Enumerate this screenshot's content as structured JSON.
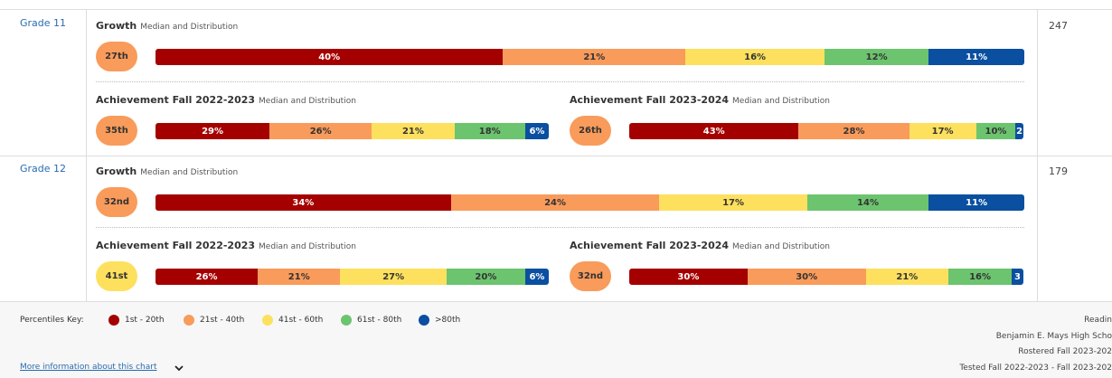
{
  "colors": [
    "#a50000",
    "#f99b5b",
    "#fde05e",
    "#6cc46e",
    "#0a4fa0"
  ],
  "rows": [
    {
      "label": "Grade 11",
      "count": "247",
      "growth": {
        "title": "Growth",
        "subtitle": "Median and Distribution",
        "median": "27th",
        "median_color": "#f99b5b",
        "values": [
          40,
          21,
          16,
          12,
          11
        ],
        "value_labels": [
          "40%",
          "21%",
          "16%",
          "12%",
          "11%"
        ]
      },
      "achievements": [
        {
          "title": "Achievement Fall 2022-2023",
          "subtitle": "Median and Distribution",
          "median": "35th",
          "median_color": "#f99b5b",
          "values": [
            29,
            26,
            21,
            18,
            6
          ],
          "value_labels": [
            "29%",
            "26%",
            "21%",
            "18%",
            "6%"
          ]
        },
        {
          "title": "Achievement Fall 2023-2024",
          "subtitle": "Median and Distribution",
          "median": "26th",
          "median_color": "#f99b5b",
          "values": [
            43,
            28,
            17,
            10,
            2
          ],
          "value_labels": [
            "43%",
            "28%",
            "17%",
            "10%",
            "2"
          ]
        }
      ]
    },
    {
      "label": "Grade 12",
      "count": "179",
      "growth": {
        "title": "Growth",
        "subtitle": "Median and Distribution",
        "median": "32nd",
        "median_color": "#f99b5b",
        "values": [
          34,
          24,
          17,
          14,
          11
        ],
        "value_labels": [
          "34%",
          "24%",
          "17%",
          "14%",
          "11%"
        ]
      },
      "achievements": [
        {
          "title": "Achievement Fall 2022-2023",
          "subtitle": "Median and Distribution",
          "median": "41st",
          "median_color": "#fde05e",
          "values": [
            26,
            21,
            27,
            20,
            6
          ],
          "value_labels": [
            "26%",
            "21%",
            "27%",
            "20%",
            "6%"
          ]
        },
        {
          "title": "Achievement Fall 2023-2024",
          "subtitle": "Median and Distribution",
          "median": "32nd",
          "median_color": "#f99b5b",
          "values": [
            30,
            30,
            21,
            16,
            3
          ],
          "value_labels": [
            "30%",
            "30%",
            "21%",
            "16%",
            "3"
          ]
        }
      ]
    }
  ],
  "key": {
    "title": "Percentiles Key:",
    "items": [
      "1st - 20th",
      "21st - 40th",
      "41st - 60th",
      "61st - 80th",
      ">80th"
    ]
  },
  "footer": {
    "link": "More information about this chart",
    "info": [
      "Readin",
      "Benjamin E. Mays High Scho",
      "Rostered Fall 2023-202",
      "Tested Fall 2022-2023 - Fall 2023-202"
    ]
  }
}
